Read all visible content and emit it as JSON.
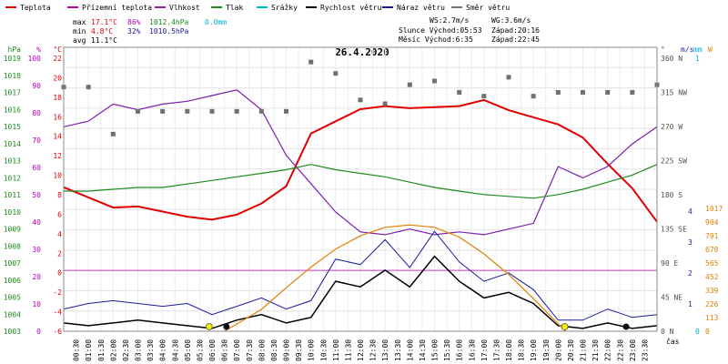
{
  "legend": [
    {
      "label": "Teplota",
      "color": "#e00000"
    },
    {
      "label": "Přízemní teplota",
      "color": "#b000b0"
    },
    {
      "label": "Vlhkost",
      "color": "#7a1fb0"
    },
    {
      "label": "Tlak",
      "color": "#1c8a1c"
    },
    {
      "label": "Srážky",
      "color": "#00b0d0"
    },
    {
      "label": "Rychlost větru",
      "color": "#000000"
    },
    {
      "label": "Náraz větru",
      "color": "#1a1aa0"
    },
    {
      "label": "Směr větru",
      "color": "#707070"
    }
  ],
  "stats": {
    "max": {
      "label": "max",
      "temp": "17.1°C",
      "hum": "86%",
      "press": "1012.4hPa",
      "rain": "0.0mm"
    },
    "min": {
      "label": "min",
      "temp": "4.8°C",
      "hum": "32%",
      "press": "1010.5hPa"
    },
    "avg": {
      "label": "avg",
      "temp": "11.1°C"
    }
  },
  "wind_info": {
    "ws": "WS:2.7m/s",
    "wg": "WG:3.6m/s"
  },
  "sun_info": {
    "sunrise": "Slunce Východ:05:53",
    "sunset": "Západ:20:16"
  },
  "moon_info": {
    "rise": "Měsíc  Východ:6:35",
    "set": "Západ:22:45"
  },
  "chart_data": {
    "type": "line",
    "title": "26.4.2020",
    "x_tick_labels": [
      "00:30",
      "01:00",
      "01:30",
      "02:00",
      "02:30",
      "03:00",
      "03:30",
      "04:00",
      "04:30",
      "05:00",
      "05:30",
      "06:00",
      "06:30",
      "07:00",
      "07:30",
      "08:00",
      "08:30",
      "09:00",
      "09:30",
      "10:00",
      "10:30",
      "11:00",
      "11:30",
      "12:00",
      "12:30",
      "13:00",
      "13:30",
      "14:00",
      "14:30",
      "15:00",
      "15:30",
      "16:00",
      "16:30",
      "17:00",
      "17:30",
      "18:00",
      "18:30",
      "19:00",
      "19:30",
      "20:00",
      "20:30",
      "21:00",
      "21:30",
      "22:00",
      "22:30",
      "23:00",
      "23:30"
    ],
    "xlabel": "čas",
    "axes": {
      "pressure": {
        "unit": "hPa",
        "min": 1003,
        "max": 1019,
        "ticks": [
          "1019",
          "1018",
          "1017",
          "1016",
          "1015",
          "1014",
          "1013",
          "1012",
          "1011",
          "1010",
          "1009",
          "1008",
          "1007",
          "1006",
          "1005",
          "1004",
          "1003"
        ],
        "color": "#1c8a1c"
      },
      "humidity": {
        "unit": "%",
        "min": 0,
        "max": 100,
        "ticks": [
          "100",
          "90",
          "80",
          "70",
          "60",
          "50",
          "40",
          "30",
          "20",
          "10",
          "0"
        ],
        "color": "#b000b0"
      },
      "temperature": {
        "unit": "°C",
        "min": -6,
        "max": 22,
        "ticks": [
          "22",
          "20",
          "18",
          "16",
          "14",
          "12",
          "10",
          "8",
          "6",
          "4",
          "2",
          "0",
          "-2",
          "-4",
          "-6"
        ],
        "color": "#e00000"
      },
      "direction": {
        "unit": "°",
        "ticks": [
          "360 N",
          "315 NW",
          "270 W",
          "225 SW",
          "180 S",
          "135 SE",
          "90 E",
          "45 NE",
          "0 N"
        ],
        "color": "#505050"
      },
      "rain": {
        "unit": "mm",
        "ticks": [
          "1",
          "0"
        ],
        "color": "#00b0d0"
      },
      "wind": {
        "unit": "m/s",
        "ticks": [
          "4",
          "3",
          "2",
          "1"
        ],
        "color": "#1a1aa0"
      },
      "solar": {
        "unit": "W",
        "ticks": [
          "1017",
          "904",
          "791",
          "678",
          "565",
          "452",
          "339",
          "226",
          "113",
          "0"
        ],
        "color": "#e08000"
      }
    },
    "series": [
      {
        "name": "Teplota",
        "color": "#e00000",
        "x": [
          0,
          1,
          2,
          3,
          4,
          5,
          6,
          7,
          8,
          9,
          10,
          11,
          12,
          13,
          14,
          15,
          16,
          17,
          18,
          19,
          20,
          21,
          22,
          23,
          24
        ],
        "y": [
          8.2,
          7.2,
          6.2,
          6.3,
          5.8,
          5.3,
          5.0,
          5.5,
          6.6,
          8.3,
          13.5,
          14.7,
          15.9,
          16.2,
          16.0,
          16.1,
          16.2,
          16.8,
          15.8,
          15.1,
          14.4,
          13.1,
          10.5,
          8.1,
          4.8
        ]
      },
      {
        "name": "Vlhkost",
        "color": "#7a1fb0",
        "x": [
          0,
          1,
          2,
          3,
          4,
          5,
          6,
          7,
          8,
          9,
          10,
          11,
          12,
          13,
          14,
          15,
          16,
          17,
          18,
          19,
          20,
          21,
          22,
          23,
          24
        ],
        "y": [
          72,
          74,
          80,
          78,
          80,
          81,
          83,
          85,
          78,
          62,
          52,
          42,
          35,
          34,
          36,
          34,
          35,
          34,
          36,
          38,
          58,
          54,
          58,
          66,
          72
        ]
      },
      {
        "name": "Tlak",
        "color": "#1c8a1c",
        "x": [
          0,
          1,
          2,
          3,
          4,
          5,
          6,
          7,
          8,
          9,
          10,
          11,
          12,
          13,
          14,
          15,
          16,
          17,
          18,
          19,
          20,
          21,
          22,
          23,
          24
        ],
        "y": [
          1010.9,
          1010.9,
          1011.0,
          1011.1,
          1011.1,
          1011.3,
          1011.5,
          1011.7,
          1011.9,
          1012.1,
          1012.4,
          1012.1,
          1011.9,
          1011.7,
          1011.4,
          1011.1,
          1010.9,
          1010.7,
          1010.6,
          1010.5,
          1010.7,
          1011.0,
          1011.4,
          1011.8,
          1012.4
        ]
      },
      {
        "name": "Rychlost větru",
        "color": "#000000",
        "x": [
          0,
          1,
          2,
          3,
          4,
          5,
          6,
          7,
          8,
          9,
          10,
          11,
          12,
          13,
          14,
          15,
          16,
          17,
          18,
          19,
          20,
          21,
          22,
          23,
          24
        ],
        "y": [
          0.3,
          0.2,
          0.3,
          0.4,
          0.3,
          0.2,
          0.1,
          0.4,
          0.6,
          0.3,
          0.5,
          1.8,
          1.6,
          2.2,
          1.6,
          2.7,
          1.8,
          1.2,
          1.4,
          1.0,
          0.2,
          0.1,
          0.3,
          0.1,
          0.2
        ]
      },
      {
        "name": "Náraz větru",
        "color": "#1a1aa0",
        "x": [
          0,
          1,
          2,
          3,
          4,
          5,
          6,
          7,
          8,
          9,
          10,
          11,
          12,
          13,
          14,
          15,
          16,
          17,
          18,
          19,
          20,
          21,
          22,
          23,
          24
        ],
        "y": [
          0.8,
          1.0,
          1.1,
          1.0,
          0.9,
          1.0,
          0.6,
          0.9,
          1.2,
          0.8,
          1.1,
          2.6,
          2.4,
          3.3,
          2.3,
          3.6,
          2.5,
          1.8,
          2.1,
          1.5,
          0.4,
          0.4,
          0.8,
          0.5,
          0.6
        ]
      },
      {
        "name": "Směr větru",
        "color": "#707070",
        "x": [
          0,
          1,
          2,
          3,
          4,
          5,
          6,
          7,
          8,
          9,
          10,
          11,
          12,
          13,
          14,
          15,
          16,
          17,
          18,
          19,
          20,
          21,
          22,
          23,
          24
        ],
        "y": [
          322,
          322,
          260,
          290,
          290,
          290,
          290,
          290,
          290,
          290,
          355,
          340,
          305,
          300,
          325,
          330,
          315,
          310,
          335,
          310,
          315,
          315,
          315,
          315,
          325
        ]
      },
      {
        "name": "Sluneční svit",
        "color": "#e08000",
        "x": [
          6.5,
          8,
          9,
          10,
          11,
          12,
          13,
          14,
          15,
          16,
          17,
          18,
          19,
          20.3
        ],
        "y": [
          0,
          180,
          360,
          530,
          680,
          790,
          860,
          880,
          860,
          780,
          640,
          470,
          270,
          0
        ]
      }
    ],
    "grid": true,
    "zero_line_temp": 0
  }
}
